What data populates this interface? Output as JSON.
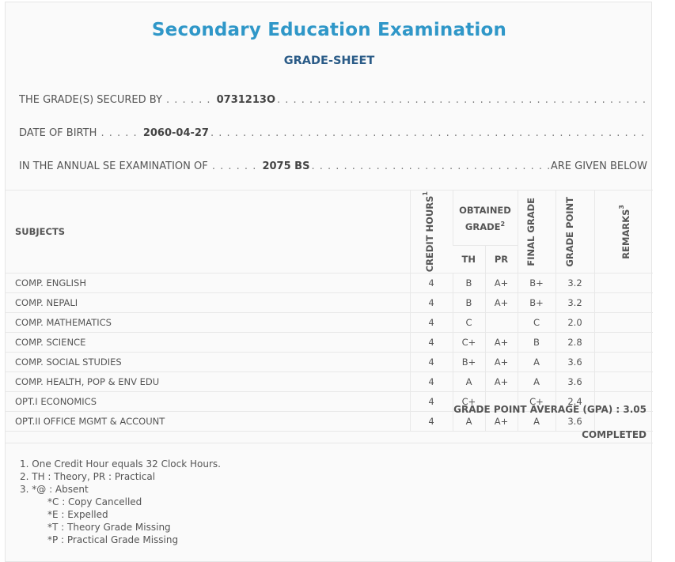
{
  "header": {
    "title": "Secondary Education Examination",
    "subtitle": "GRADE-SHEET"
  },
  "info": {
    "secured_by_label": "THE GRADE(S) SECURED BY",
    "secured_by_value": "0731213O",
    "dob_label": "DATE OF BIRTH",
    "dob_value": "2060-04-27",
    "exam_label": "IN THE ANNUAL SE EXAMINATION OF",
    "exam_value": "2075 BS",
    "exam_tail": "ARE GIVEN BELOW"
  },
  "table": {
    "headers": {
      "subjects": "SUBJECTS",
      "credit_hours": "CREDIT HOURS",
      "credit_hours_sup": "1",
      "obtained_grade": "OBTAINED GRADE",
      "obtained_grade_sup": "2",
      "th": "TH",
      "pr": "PR",
      "final_grade": "FINAL GRADE",
      "grade_point": "GRADE POINT",
      "remarks": "REMARKS",
      "remarks_sup": "3"
    },
    "rows": [
      {
        "subject": "COMP. ENGLISH",
        "credit": "4",
        "th": "B",
        "pr": "A+",
        "final": "B+",
        "gp": "3.2",
        "remarks": ""
      },
      {
        "subject": "COMP. NEPALI",
        "credit": "4",
        "th": "B",
        "pr": "A+",
        "final": "B+",
        "gp": "3.2",
        "remarks": ""
      },
      {
        "subject": "COMP. MATHEMATICS",
        "credit": "4",
        "th": "C",
        "pr": "",
        "final": "C",
        "gp": "2.0",
        "remarks": ""
      },
      {
        "subject": "COMP. SCIENCE",
        "credit": "4",
        "th": "C+",
        "pr": "A+",
        "final": "B",
        "gp": "2.8",
        "remarks": ""
      },
      {
        "subject": "COMP. SOCIAL STUDIES",
        "credit": "4",
        "th": "B+",
        "pr": "A+",
        "final": "A",
        "gp": "3.6",
        "remarks": ""
      },
      {
        "subject": "COMP. HEALTH, POP & ENV EDU",
        "credit": "4",
        "th": "A",
        "pr": "A+",
        "final": "A",
        "gp": "3.6",
        "remarks": ""
      },
      {
        "subject": "OPT.I ECONOMICS",
        "credit": "4",
        "th": "C+",
        "pr": "",
        "final": "C+",
        "gp": "2.4",
        "remarks": ""
      },
      {
        "subject": "OPT.II OFFICE MGMT & ACCOUNT",
        "credit": "4",
        "th": "A",
        "pr": "A+",
        "final": "A",
        "gp": "3.6",
        "remarks": ""
      }
    ]
  },
  "summary": {
    "gpa_label": "GRADE POINT AVERAGE (GPA) : 3.05",
    "status": "COMPLETED"
  },
  "notes": [
    "1. One Credit Hour equals 32 Clock Hours.",
    "2. TH : Theory, PR : Practical",
    "3. *@ : Absent",
    "*C : Copy Cancelled",
    "*E : Expelled",
    "*T : Theory Grade Missing",
    "*P : Practical Grade Missing"
  ],
  "colors": {
    "title": "#2f97c8",
    "subtitle": "#2a5b87",
    "text": "#555555",
    "panel_bg": "#fafafa"
  }
}
